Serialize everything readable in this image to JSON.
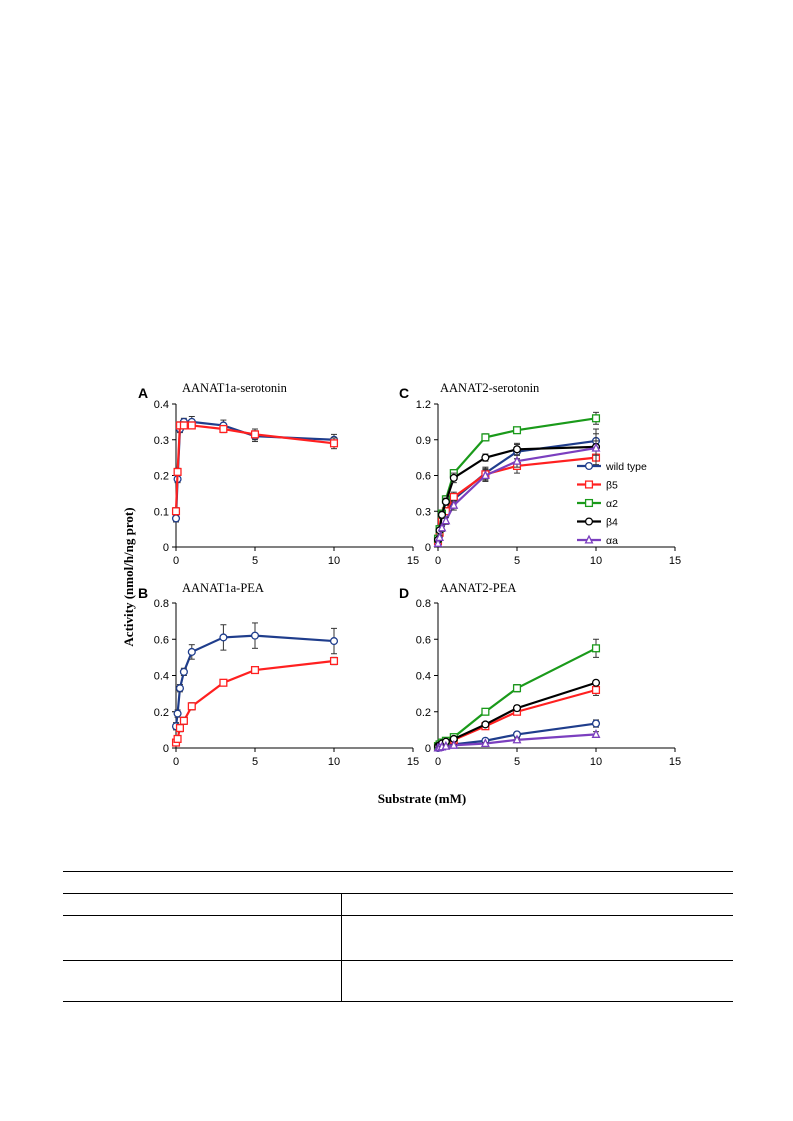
{
  "figure": {
    "ylabel": "Activity (nmol/h/ng prot)",
    "xlabel": "Substrate (mM)"
  },
  "legend": [
    {
      "name": "wild type",
      "color": "#1f3d8c",
      "marker": "circle"
    },
    {
      "name": "β5",
      "color": "#ff2020",
      "marker": "square"
    },
    {
      "name": "α2",
      "color": "#1a9a1a",
      "marker": "square"
    },
    {
      "name": "β4",
      "color": "#000000",
      "marker": "circle"
    },
    {
      "name": "αa",
      "color": "#7b3fbf",
      "marker": "triangle"
    }
  ],
  "chart_data": [
    {
      "panel": "A",
      "type": "line",
      "title": "AANAT1a-serotonin",
      "xlim": [
        0,
        15
      ],
      "ylim": [
        0,
        0.4
      ],
      "xticks": [
        "0",
        "5",
        "10",
        "15"
      ],
      "yticks": [
        "0",
        "0.1",
        "0.2",
        "0.3",
        "0.4"
      ],
      "series": [
        {
          "name": "wild type",
          "x": [
            0,
            0.1,
            0.25,
            0.5,
            1,
            3,
            5,
            10
          ],
          "y": [
            0.08,
            0.19,
            0.33,
            0.35,
            0.35,
            0.34,
            0.31,
            0.3
          ],
          "err": [
            0.01,
            0.01,
            0.01,
            0.01,
            0.015,
            0.015,
            0.015,
            0.015
          ]
        },
        {
          "name": "β5",
          "x": [
            0,
            0.1,
            0.25,
            0.5,
            1,
            3,
            5,
            10
          ],
          "y": [
            0.1,
            0.21,
            0.34,
            0.34,
            0.34,
            0.33,
            0.315,
            0.29
          ],
          "err": [
            0.01,
            0.01,
            0.01,
            0.01,
            0.01,
            0.01,
            0.015,
            0.015
          ]
        }
      ]
    },
    {
      "panel": "B",
      "type": "line",
      "title": "AANAT1a-PEA",
      "xlim": [
        0,
        15
      ],
      "ylim": [
        0,
        0.8
      ],
      "xticks": [
        "0",
        "5",
        "10",
        "15"
      ],
      "yticks": [
        "0",
        "0.2",
        "0.4",
        "0.6",
        "0.8"
      ],
      "series": [
        {
          "name": "wild type",
          "x": [
            0,
            0.1,
            0.25,
            0.5,
            1,
            3,
            5,
            10
          ],
          "y": [
            0.12,
            0.19,
            0.33,
            0.42,
            0.53,
            0.61,
            0.62,
            0.59
          ],
          "err": [
            0.02,
            0.02,
            0.02,
            0.02,
            0.04,
            0.07,
            0.07,
            0.07
          ]
        },
        {
          "name": "β5",
          "x": [
            0,
            0.1,
            0.25,
            0.5,
            1,
            3,
            5,
            10
          ],
          "y": [
            0.03,
            0.05,
            0.11,
            0.15,
            0.23,
            0.36,
            0.43,
            0.48
          ],
          "err": [
            0.01,
            0.01,
            0.02,
            0.02,
            0.02,
            0.015,
            0.015,
            0.02
          ]
        }
      ]
    },
    {
      "panel": "C",
      "type": "line",
      "title": "AANAT2-serotonin",
      "xlim": [
        0,
        15
      ],
      "ylim": [
        0,
        1.2
      ],
      "xticks": [
        "0",
        "5",
        "10",
        "15"
      ],
      "yticks": [
        "0",
        "0.3",
        "0.6",
        "0.9",
        "1.2"
      ],
      "series": [
        {
          "name": "wild type",
          "x": [
            0,
            0.1,
            0.25,
            0.5,
            1,
            3,
            5,
            10
          ],
          "y": [
            0.04,
            0.1,
            0.2,
            0.28,
            0.4,
            0.62,
            0.8,
            0.89
          ],
          "err": [
            0.02,
            0.02,
            0.03,
            0.03,
            0.04,
            0.05,
            0.06,
            0.06
          ]
        },
        {
          "name": "β5",
          "x": [
            0,
            0.1,
            0.25,
            0.5,
            1,
            3,
            5,
            10
          ],
          "y": [
            0.05,
            0.12,
            0.22,
            0.3,
            0.42,
            0.61,
            0.68,
            0.75
          ],
          "err": [
            0.02,
            0.02,
            0.03,
            0.03,
            0.04,
            0.05,
            0.06,
            0.06
          ]
        },
        {
          "name": "α2",
          "x": [
            0,
            0.1,
            0.25,
            0.5,
            1,
            3,
            5,
            10
          ],
          "y": [
            0.07,
            0.15,
            0.28,
            0.4,
            0.62,
            0.92,
            0.98,
            1.08
          ],
          "err": [
            0.02,
            0.02,
            0.03,
            0.03,
            0.03,
            0.03,
            0.02,
            0.05
          ]
        },
        {
          "name": "β4",
          "x": [
            0,
            0.1,
            0.25,
            0.5,
            1,
            3,
            5,
            10
          ],
          "y": [
            0.06,
            0.14,
            0.27,
            0.38,
            0.58,
            0.75,
            0.82,
            0.84
          ],
          "err": [
            0.02,
            0.02,
            0.03,
            0.03,
            0.04,
            0.03,
            0.05,
            0.15
          ]
        },
        {
          "name": "αa",
          "x": [
            0,
            0.1,
            0.25,
            0.5,
            1,
            3,
            5,
            10
          ],
          "y": [
            0.03,
            0.08,
            0.16,
            0.22,
            0.35,
            0.6,
            0.72,
            0.83
          ],
          "err": [
            0.02,
            0.02,
            0.03,
            0.03,
            0.04,
            0.05,
            0.05,
            0.06
          ]
        }
      ]
    },
    {
      "panel": "D",
      "type": "line",
      "title": "AANAT2-PEA",
      "xlim": [
        0,
        15
      ],
      "ylim": [
        0,
        0.8
      ],
      "xticks": [
        "0",
        "5",
        "10",
        "15"
      ],
      "yticks": [
        "0",
        "0.2",
        "0.4",
        "0.6",
        "0.8"
      ],
      "series": [
        {
          "name": "wild type",
          "x": [
            0,
            0.1,
            0.25,
            0.5,
            1,
            3,
            5,
            10
          ],
          "y": [
            0.0,
            0.005,
            0.01,
            0.015,
            0.02,
            0.04,
            0.075,
            0.135
          ],
          "err": [
            0.005,
            0.005,
            0.005,
            0.005,
            0.005,
            0.01,
            0.01,
            0.02
          ]
        },
        {
          "name": "β5",
          "x": [
            0,
            0.1,
            0.25,
            0.5,
            1,
            3,
            5,
            10
          ],
          "y": [
            0.01,
            0.015,
            0.02,
            0.03,
            0.045,
            0.12,
            0.2,
            0.32
          ],
          "err": [
            0.005,
            0.005,
            0.005,
            0.005,
            0.01,
            0.01,
            0.015,
            0.03
          ]
        },
        {
          "name": "α2",
          "x": [
            0,
            0.1,
            0.25,
            0.5,
            1,
            3,
            5,
            10
          ],
          "y": [
            0.01,
            0.02,
            0.03,
            0.04,
            0.06,
            0.2,
            0.33,
            0.55
          ],
          "err": [
            0.005,
            0.005,
            0.005,
            0.01,
            0.01,
            0.015,
            0.02,
            0.05
          ]
        },
        {
          "name": "β4",
          "x": [
            0,
            0.1,
            0.25,
            0.5,
            1,
            3,
            5,
            10
          ],
          "y": [
            0.01,
            0.015,
            0.025,
            0.035,
            0.05,
            0.13,
            0.22,
            0.36
          ],
          "err": [
            0.005,
            0.005,
            0.005,
            0.005,
            0.01,
            0.01,
            0.015,
            0.01
          ]
        },
        {
          "name": "αa",
          "x": [
            0,
            0.1,
            0.25,
            0.5,
            1,
            3,
            5,
            10
          ],
          "y": [
            0.0,
            0.003,
            0.006,
            0.01,
            0.015,
            0.025,
            0.045,
            0.075
          ],
          "err": [
            0.003,
            0.003,
            0.003,
            0.005,
            0.005,
            0.005,
            0.01,
            0.015
          ]
        }
      ]
    }
  ]
}
